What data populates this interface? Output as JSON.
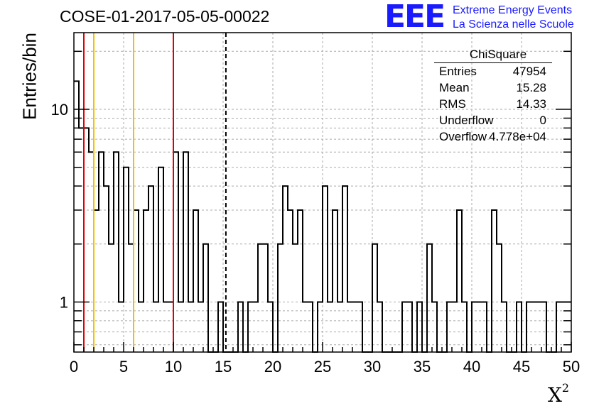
{
  "title": "COSE-01-2017-05-05-00022",
  "logo": {
    "mark": "EEE",
    "line1": "Extreme Energy Events",
    "line2": "La Scienza nelle Scuole"
  },
  "stats": {
    "title": "ChiSquare",
    "rows": [
      {
        "name": "Entries",
        "value": "47954"
      },
      {
        "name": "Mean",
        "value": "15.28"
      },
      {
        "name": "RMS",
        "value": "14.33"
      },
      {
        "name": "Underflow",
        "value": "0"
      },
      {
        "name": "Overflow",
        "value": "4.778e+04"
      }
    ]
  },
  "colors": {
    "red_line": "#dd0000",
    "yellow_line": "#f2c000",
    "histogram": "#000000",
    "logo": "#1a1aff"
  },
  "chart_data": {
    "type": "histogram",
    "title": "COSE-01-2017-05-05-00022",
    "xlabel": "χ²",
    "ylabel": "Entries/bin",
    "xlim": [
      0,
      50
    ],
    "ylim": [
      0.55,
      25
    ],
    "yscale": "log",
    "grid": true,
    "bin_width": 0.5,
    "xticks": [
      0,
      5,
      10,
      15,
      20,
      25,
      30,
      35,
      40,
      45,
      50
    ],
    "yticks": [
      1,
      10
    ],
    "values": [
      14,
      8,
      8,
      6,
      3,
      6,
      4,
      2,
      6,
      1,
      5,
      2,
      3,
      1,
      3,
      4,
      1,
      5,
      1,
      1,
      6,
      1,
      6,
      1,
      3,
      1,
      2,
      0,
      0,
      1,
      0,
      0,
      0,
      1,
      0,
      1,
      1,
      2,
      2,
      1,
      0,
      2,
      4,
      3,
      2,
      3,
      1,
      1,
      0,
      1,
      4,
      1,
      3,
      1,
      4,
      1,
      1,
      1,
      0,
      0,
      2,
      1,
      0,
      0,
      0,
      0,
      1,
      1,
      0,
      1,
      0,
      2,
      1,
      0,
      0,
      1,
      1,
      3,
      1,
      0,
      1,
      1,
      1,
      0,
      3,
      2,
      1,
      0,
      0,
      1,
      0,
      1,
      1,
      1,
      1,
      0,
      0,
      1,
      1,
      1
    ],
    "vertical_lines": [
      {
        "x": 1,
        "color": "red",
        "style": "solid"
      },
      {
        "x": 2,
        "color": "yellow",
        "style": "solid"
      },
      {
        "x": 6,
        "color": "yellow",
        "style": "solid"
      },
      {
        "x": 10,
        "color": "red",
        "style": "solid"
      },
      {
        "x": 15.28,
        "color": "black",
        "style": "dashed"
      }
    ]
  }
}
